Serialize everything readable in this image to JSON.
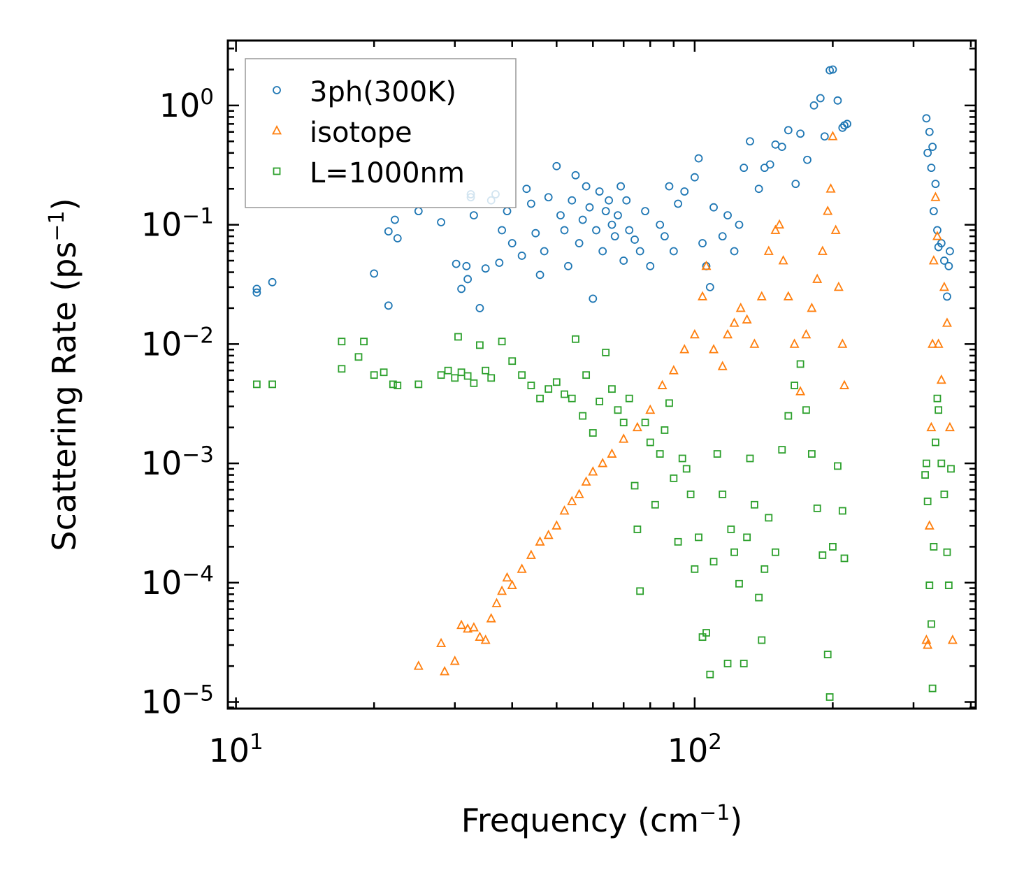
{
  "chart_data": {
    "type": "scatter",
    "title": "",
    "xlabel": "Frequency (cm",
    "xlabel_sup": "−1",
    "xlabel_end": ")",
    "ylabel": "Scattering Rate (ps",
    "ylabel_sup": "−1",
    "ylabel_end": ")",
    "xscale": "log",
    "yscale": "log",
    "xlim": [
      9.6,
      410
    ],
    "ylim": [
      8.8e-06,
      3.5
    ],
    "legend_position": "top-left",
    "x_ticks": [
      {
        "value": 10,
        "base": "10",
        "exp": "1"
      },
      {
        "value": 100,
        "base": "10",
        "exp": "2"
      }
    ],
    "y_ticks": [
      {
        "value": 1e-05,
        "base": "10",
        "exp": "−5"
      },
      {
        "value": 0.0001,
        "base": "10",
        "exp": "−4"
      },
      {
        "value": 0.001,
        "base": "10",
        "exp": "−3"
      },
      {
        "value": 0.01,
        "base": "10",
        "exp": "−2"
      },
      {
        "value": 0.1,
        "base": "10",
        "exp": "−1"
      },
      {
        "value": 1,
        "base": "10",
        "exp": "0"
      }
    ],
    "series": [
      {
        "name": "3ph(300K)",
        "marker": "circle",
        "color": "#1f77b4",
        "points": [
          [
            11.1,
            0.029
          ],
          [
            11.1,
            0.027
          ],
          [
            12.0,
            0.033
          ],
          [
            20.0,
            0.039
          ],
          [
            21.5,
            0.021
          ],
          [
            21.5,
            0.088
          ],
          [
            22.2,
            0.11
          ],
          [
            22.5,
            0.077
          ],
          [
            25.0,
            0.13
          ],
          [
            28.0,
            0.105
          ],
          [
            30.2,
            0.047
          ],
          [
            31.0,
            0.029
          ],
          [
            31.8,
            0.045
          ],
          [
            32.0,
            0.035
          ],
          [
            32.5,
            0.17
          ],
          [
            32.5,
            0.18
          ],
          [
            33.0,
            0.12
          ],
          [
            34.0,
            0.02
          ],
          [
            35.0,
            0.043
          ],
          [
            36.0,
            0.16
          ],
          [
            36.8,
            0.18
          ],
          [
            37.5,
            0.048
          ],
          [
            38.0,
            0.09
          ],
          [
            39.0,
            0.13
          ],
          [
            40.0,
            0.07
          ],
          [
            42.0,
            0.055
          ],
          [
            43.0,
            0.2
          ],
          [
            44.0,
            0.15
          ],
          [
            45.0,
            0.085
          ],
          [
            46.0,
            0.038
          ],
          [
            47.0,
            0.06
          ],
          [
            48.0,
            0.17
          ],
          [
            50.0,
            0.31
          ],
          [
            51.0,
            0.12
          ],
          [
            52.0,
            0.09
          ],
          [
            53.0,
            0.045
          ],
          [
            54.0,
            0.16
          ],
          [
            55.0,
            0.26
          ],
          [
            56.0,
            0.07
          ],
          [
            57.0,
            0.11
          ],
          [
            58.0,
            0.21
          ],
          [
            59.0,
            0.14
          ],
          [
            60.0,
            0.024
          ],
          [
            61.0,
            0.09
          ],
          [
            62.0,
            0.19
          ],
          [
            63.0,
            0.06
          ],
          [
            64.0,
            0.13
          ],
          [
            65.0,
            0.16
          ],
          [
            66.0,
            0.1
          ],
          [
            67.0,
            0.08
          ],
          [
            68.0,
            0.12
          ],
          [
            69.0,
            0.21
          ],
          [
            70.0,
            0.05
          ],
          [
            71.0,
            0.16
          ],
          [
            72.0,
            0.09
          ],
          [
            74.0,
            0.075
          ],
          [
            76.0,
            0.06
          ],
          [
            78.0,
            0.13
          ],
          [
            80.0,
            0.045
          ],
          [
            84.0,
            0.1
          ],
          [
            86.0,
            0.08
          ],
          [
            88.0,
            0.21
          ],
          [
            90.0,
            0.06
          ],
          [
            92.0,
            0.15
          ],
          [
            95.0,
            0.19
          ],
          [
            100.0,
            0.25
          ],
          [
            102.0,
            0.36
          ],
          [
            104.0,
            0.07
          ],
          [
            106.0,
            0.045
          ],
          [
            108.0,
            0.03
          ],
          [
            110.0,
            0.14
          ],
          [
            115.0,
            0.08
          ],
          [
            118.0,
            0.12
          ],
          [
            122.0,
            0.06
          ],
          [
            125.0,
            0.1
          ],
          [
            128.0,
            0.3
          ],
          [
            132.0,
            0.5
          ],
          [
            138.0,
            0.2
          ],
          [
            142.0,
            0.3
          ],
          [
            146.0,
            0.32
          ],
          [
            150.0,
            0.47
          ],
          [
            155.0,
            0.45
          ],
          [
            160.0,
            0.62
          ],
          [
            166.0,
            0.22
          ],
          [
            170.0,
            0.58
          ],
          [
            176.0,
            0.35
          ],
          [
            182.0,
            1.0
          ],
          [
            188.0,
            1.15
          ],
          [
            192.0,
            0.55
          ],
          [
            197.0,
            1.97
          ],
          [
            200.0,
            2.0
          ],
          [
            205.0,
            1.1
          ],
          [
            210.0,
            0.65
          ],
          [
            212.0,
            0.68
          ],
          [
            215.0,
            0.7
          ],
          [
            320.0,
            0.78
          ],
          [
            322.0,
            0.4
          ],
          [
            325.0,
            0.6
          ],
          [
            328.0,
            0.3
          ],
          [
            330.0,
            0.45
          ],
          [
            332.0,
            0.13
          ],
          [
            335.0,
            0.22
          ],
          [
            338.0,
            0.09
          ],
          [
            340.0,
            0.065
          ],
          [
            345.0,
            0.07
          ],
          [
            350.0,
            0.05
          ],
          [
            355.0,
            0.025
          ],
          [
            358.0,
            0.045
          ],
          [
            360.0,
            0.06
          ]
        ]
      },
      {
        "name": "isotope",
        "marker": "triangle",
        "color": "#ff7f0e",
        "points": [
          [
            25.0,
            2e-05
          ],
          [
            28.0,
            3.1e-05
          ],
          [
            28.5,
            1.8e-05
          ],
          [
            30.0,
            2.2e-05
          ],
          [
            31.0,
            4.4e-05
          ],
          [
            32.0,
            4.1e-05
          ],
          [
            33.0,
            4.2e-05
          ],
          [
            34.0,
            3.5e-05
          ],
          [
            35.0,
            3.3e-05
          ],
          [
            36.0,
            5e-05
          ],
          [
            37.0,
            6.7e-05
          ],
          [
            38.0,
            8.5e-05
          ],
          [
            39.0,
            0.00011
          ],
          [
            40.0,
            9.5e-05
          ],
          [
            42.0,
            0.00013
          ],
          [
            44.0,
            0.00017
          ],
          [
            46.0,
            0.00022
          ],
          [
            48.0,
            0.00025
          ],
          [
            50.0,
            0.0003
          ],
          [
            52.0,
            0.0004
          ],
          [
            54.0,
            0.00048
          ],
          [
            56.0,
            0.00055
          ],
          [
            58.0,
            0.0007
          ],
          [
            60.0,
            0.00085
          ],
          [
            63.0,
            0.001
          ],
          [
            66.0,
            0.0012
          ],
          [
            70.0,
            0.0016
          ],
          [
            75.0,
            0.002
          ],
          [
            80.0,
            0.0028
          ],
          [
            85.0,
            0.0045
          ],
          [
            90.0,
            0.006
          ],
          [
            95.0,
            0.009
          ],
          [
            100.0,
            0.012
          ],
          [
            104.0,
            0.025
          ],
          [
            106.0,
            0.045
          ],
          [
            110.0,
            0.009
          ],
          [
            115.0,
            0.0065
          ],
          [
            118.0,
            0.012
          ],
          [
            122.0,
            0.015
          ],
          [
            126.0,
            0.02
          ],
          [
            130.0,
            0.016
          ],
          [
            135.0,
            0.01
          ],
          [
            140.0,
            0.025
          ],
          [
            145.0,
            0.06
          ],
          [
            150.0,
            0.09
          ],
          [
            153.0,
            0.1
          ],
          [
            156.0,
            0.05
          ],
          [
            160.0,
            0.025
          ],
          [
            165.0,
            0.01
          ],
          [
            170.0,
            0.004
          ],
          [
            175.0,
            0.012
          ],
          [
            180.0,
            0.02
          ],
          [
            185.0,
            0.035
          ],
          [
            190.0,
            0.06
          ],
          [
            195.0,
            0.13
          ],
          [
            198.0,
            0.2
          ],
          [
            200.0,
            0.55
          ],
          [
            203.0,
            0.09
          ],
          [
            206.0,
            0.03
          ],
          [
            210.0,
            0.01
          ],
          [
            212.0,
            0.0045
          ],
          [
            320.0,
            3.3e-05
          ],
          [
            322.0,
            3e-05
          ],
          [
            325.0,
            0.0003
          ],
          [
            328.0,
            0.002
          ],
          [
            330.0,
            0.01
          ],
          [
            332.0,
            0.05
          ],
          [
            335.0,
            0.17
          ],
          [
            338.0,
            0.08
          ],
          [
            340.0,
            0.01
          ],
          [
            345.0,
            0.005
          ],
          [
            350.0,
            0.03
          ],
          [
            355.0,
            0.015
          ],
          [
            360.0,
            0.002
          ],
          [
            365.0,
            3.3e-05
          ]
        ]
      },
      {
        "name": "L=1000nm",
        "marker": "square",
        "color": "#2ca02c",
        "points": [
          [
            11.1,
            0.0046
          ],
          [
            12.0,
            0.0046
          ],
          [
            17.0,
            0.0062
          ],
          [
            17.0,
            0.0105
          ],
          [
            18.5,
            0.0078
          ],
          [
            19.0,
            0.0105
          ],
          [
            20.0,
            0.0055
          ],
          [
            21.0,
            0.0058
          ],
          [
            22.0,
            0.0046
          ],
          [
            22.5,
            0.0045
          ],
          [
            25.0,
            0.0046
          ],
          [
            28.0,
            0.0055
          ],
          [
            29.0,
            0.006
          ],
          [
            30.0,
            0.0052
          ],
          [
            30.5,
            0.0115
          ],
          [
            31.0,
            0.0058
          ],
          [
            32.0,
            0.0054
          ],
          [
            33.0,
            0.0047
          ],
          [
            34.0,
            0.0098
          ],
          [
            35.0,
            0.006
          ],
          [
            36.0,
            0.0052
          ],
          [
            38.0,
            0.0105
          ],
          [
            40.0,
            0.0072
          ],
          [
            42.0,
            0.0055
          ],
          [
            44.0,
            0.0045
          ],
          [
            46.0,
            0.0035
          ],
          [
            48.0,
            0.0042
          ],
          [
            50.0,
            0.0048
          ],
          [
            52.0,
            0.0038
          ],
          [
            54.0,
            0.0035
          ],
          [
            55.0,
            0.011
          ],
          [
            57.0,
            0.0025
          ],
          [
            58.0,
            0.0055
          ],
          [
            60.0,
            0.0018
          ],
          [
            62.0,
            0.0033
          ],
          [
            64.0,
            0.0085
          ],
          [
            66.0,
            0.0042
          ],
          [
            68.0,
            0.0028
          ],
          [
            70.0,
            0.0022
          ],
          [
            72.0,
            0.0035
          ],
          [
            74.0,
            0.00065
          ],
          [
            75.0,
            0.00028
          ],
          [
            76.0,
            8.5e-05
          ],
          [
            78.0,
            0.0022
          ],
          [
            80.0,
            0.0015
          ],
          [
            82.0,
            0.00045
          ],
          [
            84.0,
            0.0012
          ],
          [
            86.0,
            0.0019
          ],
          [
            88.0,
            0.0032
          ],
          [
            90.0,
            0.00075
          ],
          [
            92.0,
            0.00022
          ],
          [
            94.0,
            0.0011
          ],
          [
            96.0,
            0.0009
          ],
          [
            98.0,
            0.00055
          ],
          [
            100.0,
            0.00013
          ],
          [
            102.0,
            0.00024
          ],
          [
            104.0,
            3.5e-05
          ],
          [
            106.0,
            3.8e-05
          ],
          [
            108.0,
            1.7e-05
          ],
          [
            110.0,
            0.00015
          ],
          [
            112.0,
            0.0012
          ],
          [
            115.0,
            0.00055
          ],
          [
            118.0,
            2.1e-05
          ],
          [
            120.0,
            0.00028
          ],
          [
            122.0,
            0.00018
          ],
          [
            125.0,
            9.8e-05
          ],
          [
            128.0,
            2.1e-05
          ],
          [
            130.0,
            0.00024
          ],
          [
            132.0,
            0.0011
          ],
          [
            135.0,
            0.00045
          ],
          [
            138.0,
            7.5e-05
          ],
          [
            140.0,
            3.3e-05
          ],
          [
            142.0,
            0.00013
          ],
          [
            145.0,
            0.00035
          ],
          [
            150.0,
            0.00018
          ],
          [
            155.0,
            0.0013
          ],
          [
            160.0,
            0.0025
          ],
          [
            165.0,
            0.0045
          ],
          [
            170.0,
            0.0068
          ],
          [
            175.0,
            0.0028
          ],
          [
            180.0,
            0.0012
          ],
          [
            185.0,
            0.00042
          ],
          [
            190.0,
            0.00017
          ],
          [
            195.0,
            2.5e-05
          ],
          [
            197.0,
            1.1e-05
          ],
          [
            200.0,
            0.0002
          ],
          [
            205.0,
            0.00095
          ],
          [
            210.0,
            0.0004
          ],
          [
            212.0,
            0.00016
          ],
          [
            318.0,
            0.0008
          ],
          [
            320.0,
            0.001
          ],
          [
            322.0,
            0.00048
          ],
          [
            325.0,
            9.5e-05
          ],
          [
            328.0,
            4.5e-05
          ],
          [
            330.0,
            1.3e-05
          ],
          [
            332.0,
            0.0002
          ],
          [
            335.0,
            0.0015
          ],
          [
            338.0,
            0.0035
          ],
          [
            340.0,
            0.0028
          ],
          [
            345.0,
            0.001
          ],
          [
            350.0,
            0.00055
          ],
          [
            355.0,
            0.00018
          ],
          [
            358.0,
            9.5e-05
          ],
          [
            362.0,
            0.0009
          ]
        ]
      }
    ]
  }
}
